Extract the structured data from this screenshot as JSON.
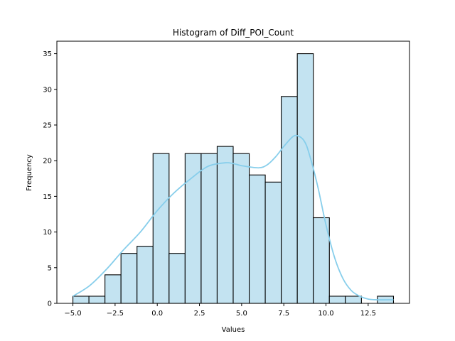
{
  "chart_data": {
    "type": "histogram",
    "title": "Histogram of Diff_POI_Count",
    "xlabel": "Values",
    "ylabel": "Frequency",
    "xlim": [
      -5.95,
      14.95
    ],
    "ylim": [
      0,
      36.75
    ],
    "xticks": [
      -5.0,
      -2.5,
      0.0,
      2.5,
      5.0,
      7.5,
      10.0,
      12.5
    ],
    "xtick_labels": [
      "−5.0",
      "−2.5",
      "0.0",
      "2.5",
      "5.0",
      "7.5",
      "10.0",
      "12.5"
    ],
    "yticks": [
      0,
      5,
      10,
      15,
      20,
      25,
      30,
      35
    ],
    "ytick_labels": [
      "0",
      "5",
      "10",
      "15",
      "20",
      "25",
      "30",
      "35"
    ],
    "bins": {
      "start": -5.0,
      "width": 0.95,
      "counts": [
        1,
        1,
        4,
        7,
        8,
        21,
        7,
        21,
        21,
        22,
        21,
        18,
        17,
        29,
        35,
        12,
        1,
        1,
        0,
        1
      ]
    },
    "kde": {
      "x": [
        -5.0,
        -4.0,
        -3.0,
        -2.0,
        -1.0,
        0.0,
        1.0,
        2.0,
        3.0,
        4.0,
        4.5,
        5.0,
        6.0,
        6.5,
        7.0,
        7.5,
        8.0,
        8.3,
        8.7,
        9.0,
        9.5,
        10.0,
        10.5,
        11.0,
        11.5,
        12.0,
        12.5,
        13.0,
        14.0
      ],
      "y": [
        1.0,
        2.5,
        4.8,
        7.5,
        10.0,
        13.0,
        15.5,
        17.5,
        19.2,
        19.7,
        19.6,
        19.3,
        19.0,
        19.4,
        20.5,
        22.0,
        23.3,
        23.5,
        22.8,
        21.0,
        16.5,
        11.0,
        6.5,
        3.5,
        1.8,
        1.0,
        0.6,
        0.5,
        0.5
      ]
    },
    "colors": {
      "bar_fill": "#c3e3f1",
      "bar_edge": "#000000",
      "kde_line": "#87ceeb"
    },
    "grid": false,
    "legend": "none"
  }
}
